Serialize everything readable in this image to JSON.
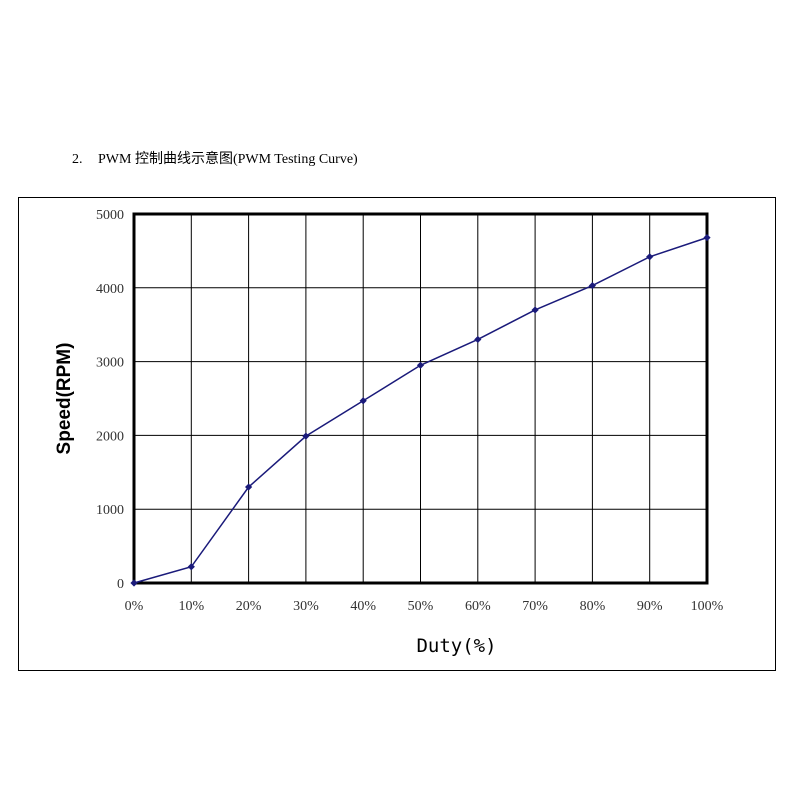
{
  "document": {
    "number": "2.",
    "heading": "PWM 控制曲线示意图(PWM Testing Curve)"
  },
  "chart_data": {
    "type": "line",
    "title": "",
    "xlabel": "Duty(%)",
    "ylabel": "Speed(RPM)",
    "x": [
      0,
      10,
      20,
      30,
      40,
      50,
      60,
      70,
      80,
      90,
      100
    ],
    "x_tick_labels": [
      "0%",
      "10%",
      "20%",
      "30%",
      "40%",
      "50%",
      "60%",
      "70%",
      "80%",
      "90%",
      "100%"
    ],
    "y_ticks": [
      0,
      1000,
      2000,
      3000,
      4000,
      5000
    ],
    "y_tick_labels": [
      "0",
      "1000",
      "2000",
      "3000",
      "4000",
      "5000"
    ],
    "xlim": [
      0,
      100
    ],
    "ylim": [
      0,
      5000
    ],
    "grid": true,
    "legend": "none",
    "series": [
      {
        "values": [
          0,
          220,
          1300,
          1990,
          2470,
          2950,
          3300,
          3700,
          4030,
          4420,
          4680
        ],
        "color": "#1a1a7a"
      }
    ],
    "colors": {
      "line": "#1a1a7a",
      "marker": "#1a1a7a",
      "grid": "#000000"
    }
  }
}
